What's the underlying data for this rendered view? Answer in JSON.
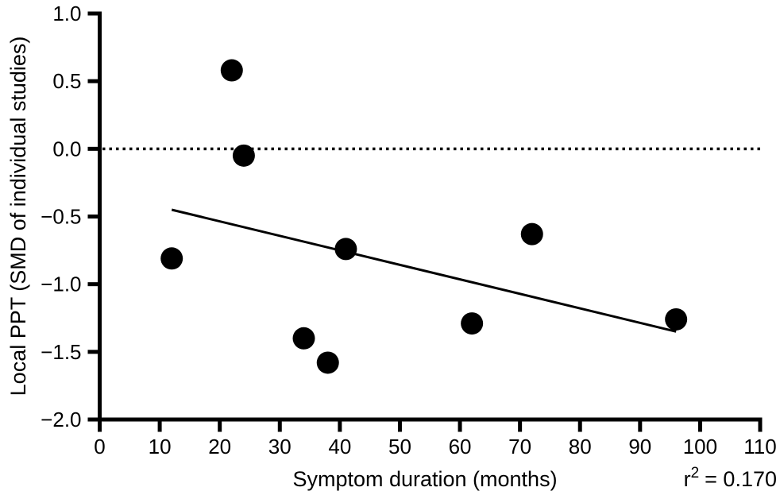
{
  "chart_data": {
    "type": "scatter",
    "title": "",
    "xlabel": "Symptom duration (months)",
    "ylabel": "Local PPT (SMD of individual studies)",
    "xlim": [
      0,
      110
    ],
    "ylim": [
      -2.0,
      1.0
    ],
    "grid": false,
    "legend": "none",
    "x_ticks": [
      {
        "value": 0,
        "label": "0"
      },
      {
        "value": 10,
        "label": "10"
      },
      {
        "value": 20,
        "label": "20"
      },
      {
        "value": 30,
        "label": "30"
      },
      {
        "value": 40,
        "label": "40"
      },
      {
        "value": 50,
        "label": "50"
      },
      {
        "value": 60,
        "label": "60"
      },
      {
        "value": 70,
        "label": "70"
      },
      {
        "value": 80,
        "label": "80"
      },
      {
        "value": 90,
        "label": "90"
      },
      {
        "value": 100,
        "label": "100"
      },
      {
        "value": 110,
        "label": "110"
      }
    ],
    "y_ticks": [
      {
        "value": 1.0,
        "label": "1.0"
      },
      {
        "value": 0.5,
        "label": "0.5"
      },
      {
        "value": 0.0,
        "label": "0.0"
      },
      {
        "value": -0.5,
        "label": "−0.5"
      },
      {
        "value": -1.0,
        "label": "−1.0"
      },
      {
        "value": -1.5,
        "label": "−1.5"
      },
      {
        "value": -2.0,
        "label": "−2.0"
      }
    ],
    "points": [
      {
        "x": 12,
        "y": -0.81
      },
      {
        "x": 22,
        "y": 0.58
      },
      {
        "x": 24,
        "y": -0.05
      },
      {
        "x": 34,
        "y": -1.4
      },
      {
        "x": 38,
        "y": -1.58
      },
      {
        "x": 41,
        "y": -0.74
      },
      {
        "x": 62,
        "y": -1.29
      },
      {
        "x": 72,
        "y": -0.63
      },
      {
        "x": 96,
        "y": -1.26
      }
    ],
    "regression_line": {
      "x1": 12,
      "y1": -0.45,
      "x2": 96,
      "y2": -1.35
    },
    "reference_line": {
      "y": 0.0,
      "style": "dotted"
    },
    "annotation": {
      "text": "r² = 0.170",
      "base": "r",
      "sup": "2",
      "rest": "= 0.170",
      "r_squared": "0.170"
    },
    "colors": {
      "points": "#000000",
      "line": "#000000",
      "axis": "#000000",
      "background": "#ffffff"
    }
  }
}
